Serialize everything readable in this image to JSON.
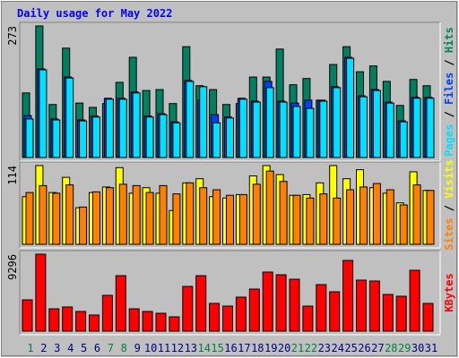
{
  "chart_data": {
    "type": "bar",
    "title": "Daily usage for May 2022",
    "categories": [
      "1",
      "2",
      "3",
      "4",
      "5",
      "6",
      "7",
      "8",
      "9",
      "10",
      "11",
      "12",
      "13",
      "14",
      "15",
      "16",
      "17",
      "18",
      "19",
      "20",
      "21",
      "22",
      "23",
      "24",
      "25",
      "26",
      "27",
      "28",
      "29",
      "30",
      "31"
    ],
    "highlight_days": [
      "1",
      "7",
      "8",
      "14",
      "15",
      "21",
      "22",
      "28",
      "29"
    ],
    "highlight_color": "#008040",
    "legend_separator": " / ",
    "panels": [
      {
        "ylim": [
          0,
          273
        ],
        "yticks": [
          273
        ],
        "series": [
          {
            "name": "Pages",
            "color": "#00e0ff",
            "values": [
              80,
              182,
              78,
              165,
              76,
              84,
              121,
              121,
              134,
              84,
              89,
              72,
              158,
              147,
              72,
              82,
              121,
              115,
              145,
              115,
              106,
              102,
              117,
              145,
              206,
              126,
              139,
              113,
              74,
              123,
              123
            ]
          },
          {
            "name": "Files",
            "color": "#0040ff",
            "values": [
              87,
              184,
              80,
              167,
              78,
              86,
              123,
              123,
              136,
              86,
              91,
              74,
              160,
              119,
              89,
              84,
              123,
              117,
              158,
              117,
              113,
              119,
              119,
              147,
              208,
              128,
              141,
              115,
              76,
              125,
              125
            ]
          },
          {
            "name": "Hits",
            "color": "#008060",
            "values": [
              134,
              273,
              110,
              227,
              113,
              104,
              112,
              156,
              208,
              139,
              141,
              112,
              230,
              149,
              141,
              110,
              112,
              167,
              167,
              225,
              151,
              164,
              119,
              193,
              230,
              178,
              190,
              158,
              108,
              162,
              149
            ]
          }
        ]
      },
      {
        "ylim": [
          0,
          114
        ],
        "yticks": [
          114
        ],
        "series": [
          {
            "name": "Sites",
            "color": "#ff8000",
            "values": [
              75,
              85,
              74,
              86,
              54,
              76,
              82,
              87,
              85,
              75,
              85,
              73,
              89,
              82,
              79,
              71,
              72,
              87,
              106,
              91,
              71,
              67,
              73,
              67,
              79,
              83,
              88,
              79,
              57,
              86,
              78
            ]
          },
          {
            "name": "Visits",
            "color": "#ffff00",
            "values": [
              69,
              114,
              75,
              97,
              53,
              75,
              83,
              111,
              74,
              82,
              74,
              49,
              89,
              95,
              69,
              67,
              72,
              99,
              114,
              101,
              71,
              72,
              89,
              114,
              95,
              108,
              82,
              74,
              60,
              105,
              78
            ]
          }
        ]
      },
      {
        "ylim": [
          0,
          9296
        ],
        "yticks": [
          9296
        ],
        "series": [
          {
            "name": "KBytes",
            "color": "#ff0000",
            "values": [
              3783,
              9296,
              2700,
              2919,
              2378,
              1946,
              4324,
              6700,
              2700,
              2378,
              2162,
              1730,
              5405,
              6700,
              3351,
              3027,
              4108,
              5080,
              7135,
              6811,
              6270,
              3027,
              5622,
              4757,
              8540,
              6162,
              6054,
              4432,
              4216,
              7351,
              3351
            ]
          }
        ]
      }
    ]
  }
}
